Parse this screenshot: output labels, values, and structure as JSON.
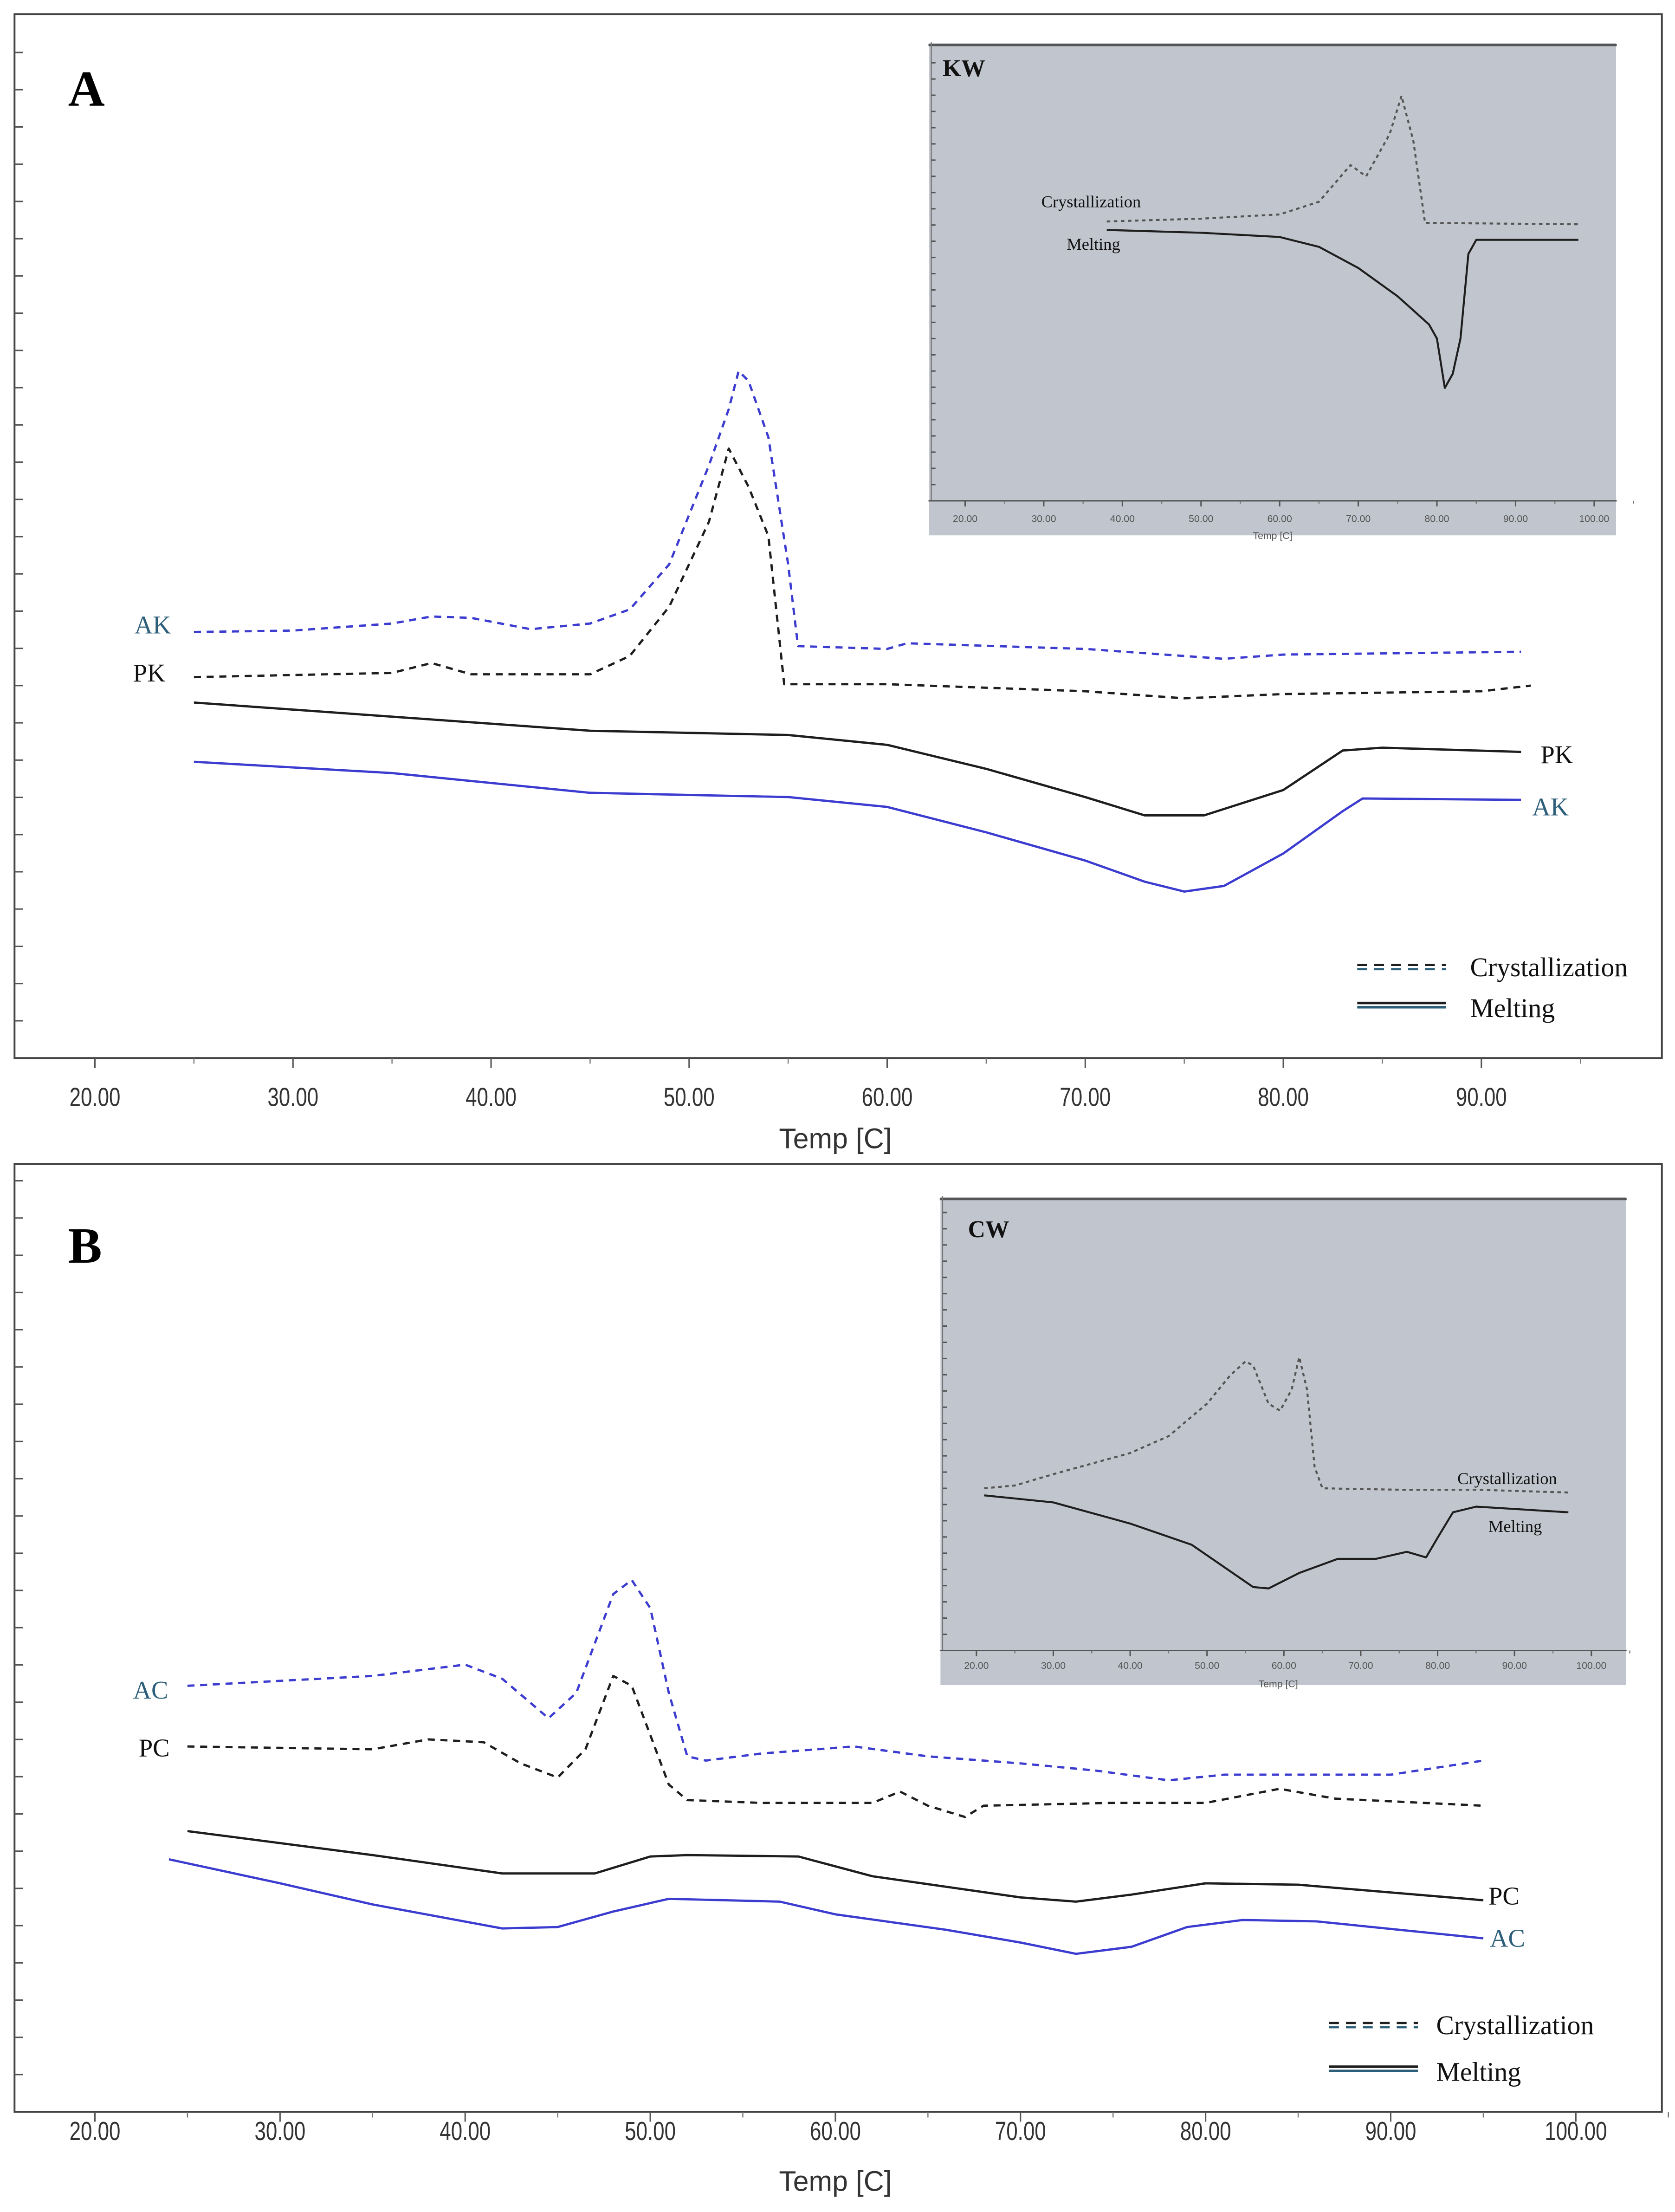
{
  "colors": {
    "blue": "#3c3cd0",
    "black": "#1e1e1e",
    "label_teal": "#2e5f7a",
    "inset_bg": "#c1c5cd",
    "inset_line": "#555555"
  },
  "legend": {
    "crystallization": "Crystallization",
    "melting": "Melting"
  },
  "chart_data": [
    {
      "id": "A",
      "type": "line",
      "panel_label": "A",
      "xlabel": "Temp [C]",
      "ylabel": "",
      "xlim": [
        15,
        97
      ],
      "ylim": [
        0,
        74
      ],
      "xticks": [
        "20.00",
        "30.00",
        "40.00",
        "50.00",
        "60.00",
        "70.00",
        "80.00",
        "90.00"
      ],
      "legend_placement": "bottom-right",
      "series": [
        {
          "name": "AK",
          "kind": "Crystallization",
          "color": "#3c3cd0",
          "style": "dashed",
          "points": [
            [
              25,
              30.2
            ],
            [
              30,
              30.3
            ],
            [
              35,
              30.8
            ],
            [
              37,
              31.3
            ],
            [
              39,
              31.2
            ],
            [
              42,
              30.4
            ],
            [
              45,
              30.8
            ],
            [
              47,
              31.8
            ],
            [
              49,
              35
            ],
            [
              51,
              42
            ],
            [
              52,
              46
            ],
            [
              52.5,
              48.7
            ],
            [
              53,
              48
            ],
            [
              54,
              44
            ],
            [
              55,
              35
            ],
            [
              55.5,
              29.2
            ],
            [
              60,
              29
            ],
            [
              61,
              29.4
            ],
            [
              70,
              29
            ],
            [
              77,
              28.3
            ],
            [
              80,
              28.6
            ],
            [
              92,
              28.8
            ]
          ]
        },
        {
          "name": "PK",
          "kind": "Crystallization",
          "color": "#1e1e1e",
          "style": "dashed",
          "points": [
            [
              25,
              27
            ],
            [
              35,
              27.3
            ],
            [
              37,
              28
            ],
            [
              39,
              27.2
            ],
            [
              45,
              27.2
            ],
            [
              47,
              28.5
            ],
            [
              49,
              32
            ],
            [
              51,
              38
            ],
            [
              52,
              43.2
            ],
            [
              53,
              40.5
            ],
            [
              54,
              37
            ],
            [
              54.8,
              26.5
            ],
            [
              60,
              26.5
            ],
            [
              70,
              26
            ],
            [
              75,
              25.5
            ],
            [
              80,
              25.8
            ],
            [
              90,
              26
            ],
            [
              92.5,
              26.4
            ]
          ]
        },
        {
          "name": "PK",
          "kind": "Melting",
          "color": "#1e1e1e",
          "style": "solid",
          "points": [
            [
              25,
              25.2
            ],
            [
              35,
              24.2
            ],
            [
              45,
              23.2
            ],
            [
              55,
              22.9
            ],
            [
              60,
              22.2
            ],
            [
              65,
              20.5
            ],
            [
              70,
              18.5
            ],
            [
              73,
              17.2
            ],
            [
              76,
              17.2
            ],
            [
              80,
              19
            ],
            [
              83,
              21.8
            ],
            [
              85,
              22
            ],
            [
              92,
              21.7
            ]
          ]
        },
        {
          "name": "AK",
          "kind": "Melting",
          "color": "#3c3cd0",
          "style": "solid",
          "points": [
            [
              25,
              21
            ],
            [
              35,
              20.2
            ],
            [
              45,
              18.8
            ],
            [
              55,
              18.5
            ],
            [
              60,
              17.8
            ],
            [
              65,
              16
            ],
            [
              70,
              14
            ],
            [
              73,
              12.5
            ],
            [
              75,
              11.8
            ],
            [
              77,
              12.2
            ],
            [
              80,
              14.5
            ],
            [
              83,
              17.5
            ],
            [
              84,
              18.4
            ],
            [
              92,
              18.3
            ]
          ]
        }
      ]
    },
    {
      "id": "A-inset",
      "type": "line",
      "panel_label": "KW",
      "xlabel": "Temp [C]",
      "xlim": [
        15,
        103
      ],
      "ylim": [
        0,
        33
      ],
      "xticks": [
        "20.00",
        "30.00",
        "40.00",
        "50.00",
        "60.00",
        "70.00",
        "80.00",
        "90.00",
        "100.00"
      ],
      "series": [
        {
          "name": "Crystallization",
          "style": "dotted",
          "color": "#555555",
          "points": [
            [
              38,
              19.8
            ],
            [
              50,
              20
            ],
            [
              60,
              20.3
            ],
            [
              65,
              21.2
            ],
            [
              69,
              23.8
            ],
            [
              71,
              23
            ],
            [
              74,
              26
            ],
            [
              75.5,
              28.7
            ],
            [
              77,
              25.5
            ],
            [
              78.5,
              19.7
            ],
            [
              98,
              19.6
            ]
          ]
        },
        {
          "name": "Melting",
          "style": "solid",
          "color": "#1e1e1e",
          "points": [
            [
              38,
              19.2
            ],
            [
              50,
              19
            ],
            [
              60,
              18.7
            ],
            [
              65,
              18
            ],
            [
              70,
              16.5
            ],
            [
              75,
              14.5
            ],
            [
              79,
              12.5
            ],
            [
              80,
              11.5
            ],
            [
              81,
              8
            ],
            [
              82,
              9
            ],
            [
              83,
              11.5
            ],
            [
              84,
              17.5
            ],
            [
              85,
              18.5
            ],
            [
              98,
              18.5
            ]
          ]
        }
      ]
    },
    {
      "id": "B",
      "type": "line",
      "panel_label": "B",
      "xlabel": "Temp [C]",
      "ylabel": "",
      "xlim": [
        15,
        105
      ],
      "ylim": [
        0,
        67
      ],
      "xticks": [
        "20.00",
        "30.00",
        "40.00",
        "50.00",
        "60.00",
        "70.00",
        "80.00",
        "90.00",
        "100.00"
      ],
      "legend_placement": "bottom-right",
      "series": [
        {
          "name": "AC",
          "kind": "Crystallization",
          "color": "#3c3cd0",
          "style": "dashed",
          "points": [
            [
              25,
              30.2
            ],
            [
              35,
              30.9
            ],
            [
              40,
              31.7
            ],
            [
              42,
              30.7
            ],
            [
              44.5,
              27.9
            ],
            [
              46,
              29.7
            ],
            [
              47,
              33.2
            ],
            [
              48,
              36.7
            ],
            [
              49,
              37.7
            ],
            [
              50,
              35.7
            ],
            [
              51,
              29.7
            ],
            [
              52,
              25.2
            ],
            [
              53,
              24.9
            ],
            [
              56,
              25.4
            ],
            [
              61,
              25.9
            ],
            [
              65,
              25.2
            ],
            [
              70,
              24.7
            ],
            [
              74,
              24.2
            ],
            [
              78,
              23.5
            ],
            [
              81,
              23.9
            ],
            [
              90,
              23.9
            ],
            [
              93,
              24.5
            ],
            [
              95,
              24.9
            ]
          ]
        },
        {
          "name": "PC",
          "kind": "Crystallization",
          "color": "#1e1e1e",
          "style": "dashed",
          "points": [
            [
              25,
              25.9
            ],
            [
              35,
              25.7
            ],
            [
              38,
              26.4
            ],
            [
              41,
              26.2
            ],
            [
              43,
              24.7
            ],
            [
              45,
              23.7
            ],
            [
              46.5,
              25.7
            ],
            [
              48,
              30.9
            ],
            [
              49,
              30.2
            ],
            [
              50,
              26.7
            ],
            [
              51,
              23.2
            ],
            [
              52,
              22.1
            ],
            [
              56,
              21.9
            ],
            [
              62,
              21.9
            ],
            [
              63.5,
              22.7
            ],
            [
              65,
              21.7
            ],
            [
              67,
              20.9
            ],
            [
              68,
              21.7
            ],
            [
              75,
              21.9
            ],
            [
              80,
              21.9
            ],
            [
              84,
              22.9
            ],
            [
              87,
              22.2
            ],
            [
              95,
              21.7
            ]
          ]
        },
        {
          "name": "PC",
          "kind": "Melting",
          "color": "#1e1e1e",
          "style": "solid",
          "points": [
            [
              25,
              19.9
            ],
            [
              35,
              18.2
            ],
            [
              42,
              16.9
            ],
            [
              47,
              16.9
            ],
            [
              50,
              18.1
            ],
            [
              52,
              18.2
            ],
            [
              58,
              18.1
            ],
            [
              62,
              16.7
            ],
            [
              70,
              15.2
            ],
            [
              73,
              14.9
            ],
            [
              76,
              15.4
            ],
            [
              80,
              16.2
            ],
            [
              85,
              16.1
            ],
            [
              95,
              15
            ]
          ]
        },
        {
          "name": "AC",
          "kind": "Melting",
          "color": "#3c3cd0",
          "style": "solid",
          "points": [
            [
              24,
              17.9
            ],
            [
              30,
              16.2
            ],
            [
              35,
              14.7
            ],
            [
              42,
              13
            ],
            [
              45,
              13.1
            ],
            [
              48,
              14.2
            ],
            [
              51,
              15.1
            ],
            [
              57,
              14.9
            ],
            [
              60,
              14
            ],
            [
              66,
              12.9
            ],
            [
              70,
              12
            ],
            [
              73,
              11.2
            ],
            [
              76,
              11.7
            ],
            [
              79,
              13.1
            ],
            [
              82,
              13.6
            ],
            [
              86,
              13.5
            ],
            [
              95,
              12.3
            ]
          ]
        }
      ]
    },
    {
      "id": "B-inset",
      "type": "line",
      "panel_label": "CW",
      "xlabel": "Temp [C]",
      "xlim": [
        15,
        103
      ],
      "ylim": [
        0,
        32
      ],
      "xticks": [
        "20.00",
        "30.00",
        "40.00",
        "50.00",
        "60.00",
        "70.00",
        "80.00",
        "90.00",
        "100.00"
      ],
      "series": [
        {
          "name": "Crystallization",
          "style": "dotted",
          "color": "#555555",
          "points": [
            [
              21,
              11.5
            ],
            [
              25,
              11.7
            ],
            [
              30,
              12.5
            ],
            [
              40,
              14
            ],
            [
              45,
              15.2
            ],
            [
              50,
              17.5
            ],
            [
              53,
              19.5
            ],
            [
              55,
              20.5
            ],
            [
              56,
              20.2
            ],
            [
              58,
              17.5
            ],
            [
              59.5,
              17
            ],
            [
              61,
              18.5
            ],
            [
              62,
              20.8
            ],
            [
              63,
              18.5
            ],
            [
              64,
              13
            ],
            [
              65,
              11.5
            ],
            [
              75,
              11.4
            ],
            [
              85,
              11.4
            ],
            [
              97,
              11.2
            ]
          ]
        },
        {
          "name": "Melting",
          "style": "solid",
          "color": "#1e1e1e",
          "points": [
            [
              21,
              11
            ],
            [
              30,
              10.5
            ],
            [
              40,
              9
            ],
            [
              48,
              7.5
            ],
            [
              52,
              6
            ],
            [
              56,
              4.5
            ],
            [
              58,
              4.4
            ],
            [
              62,
              5.5
            ],
            [
              67,
              6.5
            ],
            [
              72,
              6.5
            ],
            [
              76,
              7
            ],
            [
              78.5,
              6.6
            ],
            [
              80,
              8
            ],
            [
              82,
              9.8
            ],
            [
              85,
              10.2
            ],
            [
              97,
              9.8
            ]
          ]
        }
      ]
    }
  ]
}
